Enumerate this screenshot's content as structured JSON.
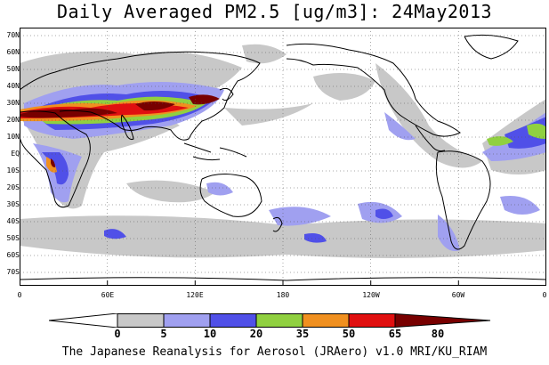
{
  "title": "Daily Averaged PM2.5 [ug/m3]: 24May2013",
  "credit": "The Japanese Reanalysis for Aerosol (JRAero) v1.0 MRI/KU_RIAM",
  "lat_labels": [
    "70N",
    "60N",
    "50N",
    "40N",
    "30N",
    "20N",
    "10N",
    "EQ",
    "10S",
    "20S",
    "30S",
    "40S",
    "50S",
    "60S",
    "70S"
  ],
  "lon_labels": [
    "0",
    "60E",
    "120E",
    "180",
    "120W",
    "60W",
    "0"
  ],
  "colorbar": {
    "ticks": [
      "0",
      "5",
      "10",
      "20",
      "35",
      "50",
      "65",
      "80"
    ],
    "colors": [
      "#ffffff",
      "#c8c8c8",
      "#a0a0f0",
      "#5050e8",
      "#90d040",
      "#f09020",
      "#e01010",
      "#780000"
    ]
  }
}
